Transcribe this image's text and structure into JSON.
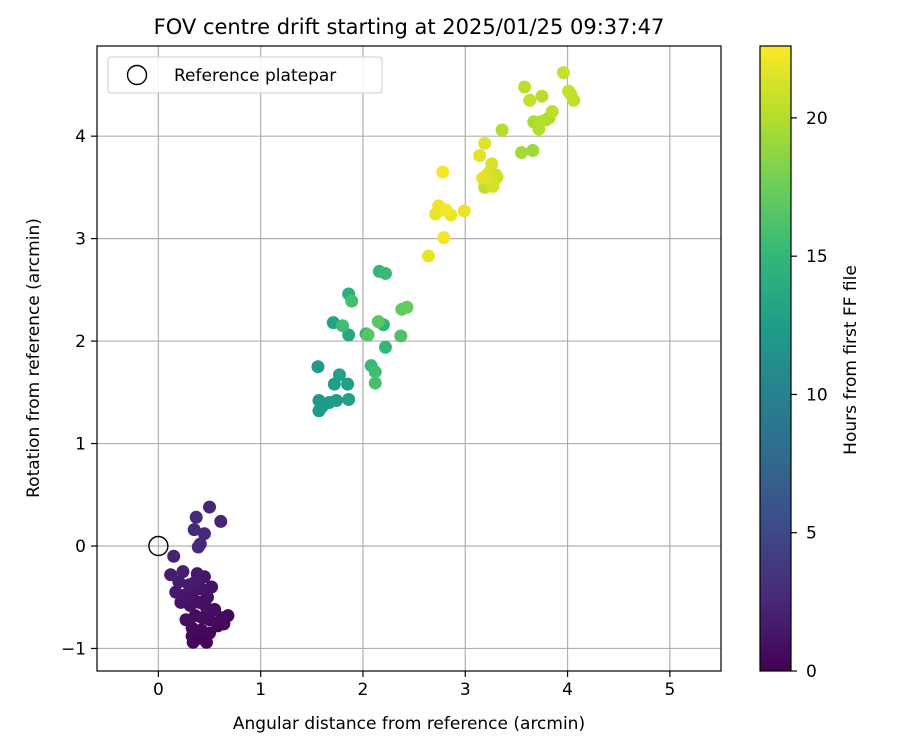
{
  "chart_data": {
    "type": "scatter",
    "title": "FOV centre drift starting at 2025/01/25 09:37:47",
    "xlabel": "Angular distance from reference (arcmin)",
    "ylabel": "Rotation from reference (arcmin)",
    "xlim": [
      -0.6,
      5.5
    ],
    "ylim": [
      -1.22,
      4.88
    ],
    "xticks": [
      0,
      1,
      2,
      3,
      4,
      5
    ],
    "yticks": [
      -1,
      0,
      1,
      2,
      3,
      4
    ],
    "grid": true,
    "legend": {
      "position": "top-left",
      "label": "Reference platepar"
    },
    "reference": {
      "x": 0,
      "y": 0
    },
    "colorbar": {
      "label": "Hours from first FF file",
      "range": [
        0,
        22.6
      ],
      "ticks": [
        0,
        5,
        10,
        15,
        20
      ],
      "colormap": [
        "#440154",
        "#482878",
        "#3e4989",
        "#31688e",
        "#26828e",
        "#1f9e89",
        "#35b779",
        "#6ece58",
        "#b5de2b",
        "#fde725"
      ]
    },
    "points": [
      {
        "x": 0.5,
        "y": 0.38,
        "h": 2.4
      },
      {
        "x": 0.61,
        "y": 0.24,
        "h": 2.3
      },
      {
        "x": 0.37,
        "y": 0.28,
        "h": 2.5
      },
      {
        "x": 0.35,
        "y": 0.16,
        "h": 2.6
      },
      {
        "x": 0.45,
        "y": 0.12,
        "h": 2.5
      },
      {
        "x": 0.41,
        "y": 0.02,
        "h": 2.6
      },
      {
        "x": 0.39,
        "y": -0.01,
        "h": 2.5
      },
      {
        "x": 0.15,
        "y": -0.1,
        "h": 2.2
      },
      {
        "x": 0.12,
        "y": -0.28,
        "h": 1.8
      },
      {
        "x": 0.24,
        "y": -0.25,
        "h": 1.9
      },
      {
        "x": 0.2,
        "y": -0.35,
        "h": 1.7
      },
      {
        "x": 0.3,
        "y": -0.38,
        "h": 1.6
      },
      {
        "x": 0.38,
        "y": -0.27,
        "h": 1.5
      },
      {
        "x": 0.45,
        "y": -0.3,
        "h": 1.4
      },
      {
        "x": 0.17,
        "y": -0.45,
        "h": 1.5
      },
      {
        "x": 0.26,
        "y": -0.48,
        "h": 1.4
      },
      {
        "x": 0.34,
        "y": -0.45,
        "h": 1.3
      },
      {
        "x": 0.42,
        "y": -0.42,
        "h": 1.2
      },
      {
        "x": 0.52,
        "y": -0.4,
        "h": 1.1
      },
      {
        "x": 0.22,
        "y": -0.55,
        "h": 1.2
      },
      {
        "x": 0.31,
        "y": -0.58,
        "h": 1.1
      },
      {
        "x": 0.4,
        "y": -0.55,
        "h": 1.0
      },
      {
        "x": 0.47,
        "y": -0.6,
        "h": 0.9
      },
      {
        "x": 0.55,
        "y": -0.62,
        "h": 0.8
      },
      {
        "x": 0.62,
        "y": -0.7,
        "h": 0.5
      },
      {
        "x": 0.68,
        "y": -0.68,
        "h": 0.4
      },
      {
        "x": 0.64,
        "y": -0.76,
        "h": 0.3
      },
      {
        "x": 0.58,
        "y": -0.78,
        "h": 0.4
      },
      {
        "x": 0.5,
        "y": -0.72,
        "h": 0.6
      },
      {
        "x": 0.43,
        "y": -0.7,
        "h": 0.7
      },
      {
        "x": 0.36,
        "y": -0.68,
        "h": 0.8
      },
      {
        "x": 0.27,
        "y": -0.72,
        "h": 0.9
      },
      {
        "x": 0.33,
        "y": -0.8,
        "h": 0.6
      },
      {
        "x": 0.42,
        "y": -0.82,
        "h": 0.5
      },
      {
        "x": 0.5,
        "y": -0.85,
        "h": 0.3
      },
      {
        "x": 0.33,
        "y": -0.88,
        "h": 0.4
      },
      {
        "x": 0.34,
        "y": -0.94,
        "h": 0.2
      },
      {
        "x": 0.47,
        "y": -0.94,
        "h": 0.1
      },
      {
        "x": 0.4,
        "y": -0.9,
        "h": 0.2
      },
      {
        "x": 0.3,
        "y": -0.5,
        "h": 1.3
      },
      {
        "x": 0.36,
        "y": -0.35,
        "h": 1.6
      },
      {
        "x": 0.48,
        "y": -0.5,
        "h": 1.0
      },
      {
        "x": 1.56,
        "y": 1.75,
        "h": 12.2
      },
      {
        "x": 1.57,
        "y": 1.42,
        "h": 12.0
      },
      {
        "x": 1.6,
        "y": 1.36,
        "h": 12.1
      },
      {
        "x": 1.57,
        "y": 1.32,
        "h": 12.3
      },
      {
        "x": 1.67,
        "y": 1.4,
        "h": 12.4
      },
      {
        "x": 1.74,
        "y": 1.42,
        "h": 12.5
      },
      {
        "x": 1.72,
        "y": 1.58,
        "h": 12.6
      },
      {
        "x": 1.77,
        "y": 1.67,
        "h": 12.8
      },
      {
        "x": 1.85,
        "y": 1.58,
        "h": 12.7
      },
      {
        "x": 1.86,
        "y": 1.43,
        "h": 12.9
      },
      {
        "x": 1.71,
        "y": 2.18,
        "h": 13.2
      },
      {
        "x": 1.8,
        "y": 2.15,
        "h": 15.5
      },
      {
        "x": 1.86,
        "y": 2.06,
        "h": 13.5
      },
      {
        "x": 1.86,
        "y": 2.46,
        "h": 14.2
      },
      {
        "x": 1.89,
        "y": 2.39,
        "h": 15.8
      },
      {
        "x": 2.03,
        "y": 2.07,
        "h": 14.8
      },
      {
        "x": 2.05,
        "y": 2.06,
        "h": 16.5
      },
      {
        "x": 2.08,
        "y": 1.76,
        "h": 15.2
      },
      {
        "x": 2.12,
        "y": 1.7,
        "h": 15.6
      },
      {
        "x": 2.12,
        "y": 1.59,
        "h": 15.9
      },
      {
        "x": 2.15,
        "y": 2.19,
        "h": 16.8
      },
      {
        "x": 2.2,
        "y": 2.16,
        "h": 14.6
      },
      {
        "x": 2.22,
        "y": 1.94,
        "h": 15.0
      },
      {
        "x": 2.16,
        "y": 2.68,
        "h": 14.9
      },
      {
        "x": 2.22,
        "y": 2.66,
        "h": 15.3
      },
      {
        "x": 2.38,
        "y": 2.31,
        "h": 16.9
      },
      {
        "x": 2.43,
        "y": 2.33,
        "h": 17.2
      },
      {
        "x": 2.37,
        "y": 2.05,
        "h": 16.1
      },
      {
        "x": 2.64,
        "y": 2.83,
        "h": 21.8
      },
      {
        "x": 2.71,
        "y": 3.24,
        "h": 22.0
      },
      {
        "x": 2.74,
        "y": 3.32,
        "h": 22.1
      },
      {
        "x": 2.79,
        "y": 3.01,
        "h": 22.3
      },
      {
        "x": 2.78,
        "y": 3.65,
        "h": 22.4
      },
      {
        "x": 2.81,
        "y": 3.28,
        "h": 22.2
      },
      {
        "x": 2.86,
        "y": 3.23,
        "h": 22.0
      },
      {
        "x": 2.99,
        "y": 3.27,
        "h": 21.9
      },
      {
        "x": 3.14,
        "y": 3.81,
        "h": 21.7
      },
      {
        "x": 3.17,
        "y": 3.59,
        "h": 21.6
      },
      {
        "x": 3.19,
        "y": 3.93,
        "h": 21.5
      },
      {
        "x": 3.19,
        "y": 3.5,
        "h": 20.5
      },
      {
        "x": 3.21,
        "y": 3.62,
        "h": 21.4
      },
      {
        "x": 3.24,
        "y": 3.65,
        "h": 20.8
      },
      {
        "x": 3.26,
        "y": 3.73,
        "h": 21.3
      },
      {
        "x": 3.27,
        "y": 3.55,
        "h": 21.2
      },
      {
        "x": 3.3,
        "y": 3.62,
        "h": 20.4
      },
      {
        "x": 3.27,
        "y": 3.51,
        "h": 21.1
      },
      {
        "x": 3.29,
        "y": 3.58,
        "h": 21.0
      },
      {
        "x": 3.31,
        "y": 3.6,
        "h": 20.9
      },
      {
        "x": 3.36,
        "y": 4.06,
        "h": 20.0
      },
      {
        "x": 3.55,
        "y": 3.84,
        "h": 19.5
      },
      {
        "x": 3.58,
        "y": 4.48,
        "h": 20.3
      },
      {
        "x": 3.63,
        "y": 4.35,
        "h": 20.6
      },
      {
        "x": 3.66,
        "y": 3.86,
        "h": 19.3
      },
      {
        "x": 3.67,
        "y": 4.14,
        "h": 19.6
      },
      {
        "x": 3.72,
        "y": 4.07,
        "h": 19.9
      },
      {
        "x": 3.73,
        "y": 4.14,
        "h": 20.1
      },
      {
        "x": 3.75,
        "y": 4.39,
        "h": 20.2
      },
      {
        "x": 3.79,
        "y": 4.16,
        "h": 19.8
      },
      {
        "x": 3.85,
        "y": 4.24,
        "h": 20.4
      },
      {
        "x": 3.82,
        "y": 4.18,
        "h": 19.7
      },
      {
        "x": 3.96,
        "y": 4.62,
        "h": 20.7
      },
      {
        "x": 4.01,
        "y": 4.44,
        "h": 20.6
      },
      {
        "x": 4.03,
        "y": 4.41,
        "h": 20.3
      },
      {
        "x": 4.06,
        "y": 4.35,
        "h": 20.5
      }
    ]
  }
}
